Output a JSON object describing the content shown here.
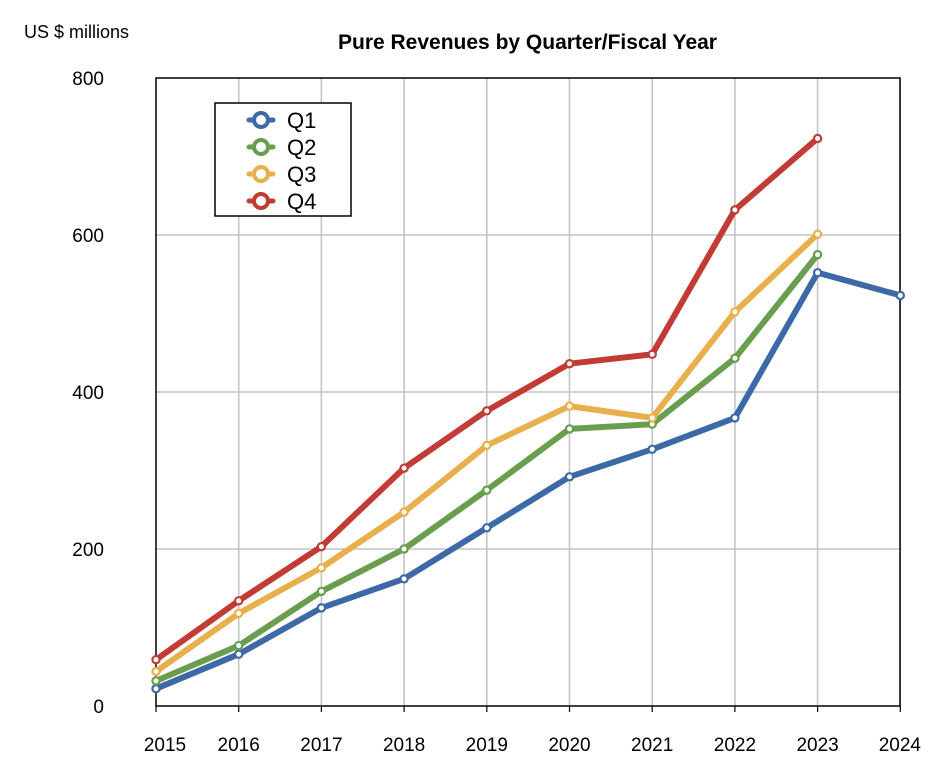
{
  "chart_data": {
    "type": "line",
    "title": "Pure Revenues by Quarter/Fiscal Year",
    "ylabel": "US $ millions",
    "xlabel": "",
    "categories": [
      "2015",
      "2016",
      "2017",
      "2018",
      "2019",
      "2020",
      "2021",
      "2022",
      "2023",
      "2024"
    ],
    "ylim": [
      0,
      800
    ],
    "yticks": [
      0,
      200,
      400,
      600,
      800
    ],
    "grid": true,
    "legend_position": "top-left",
    "series": [
      {
        "name": "Q1",
        "color": "#3d6aa6",
        "values": [
          22,
          66,
          125,
          162,
          227,
          292,
          327,
          367,
          552,
          523
        ]
      },
      {
        "name": "Q2",
        "color": "#6a9e4f",
        "values": [
          32,
          77,
          146,
          200,
          275,
          353,
          359,
          443,
          575,
          null
        ]
      },
      {
        "name": "Q3",
        "color": "#e8b04d",
        "values": [
          44,
          118,
          176,
          247,
          332,
          382,
          367,
          502,
          601,
          null
        ]
      },
      {
        "name": "Q4",
        "color": "#c23b35",
        "values": [
          59,
          134,
          203,
          303,
          376,
          436,
          448,
          632,
          723,
          null
        ]
      }
    ]
  }
}
